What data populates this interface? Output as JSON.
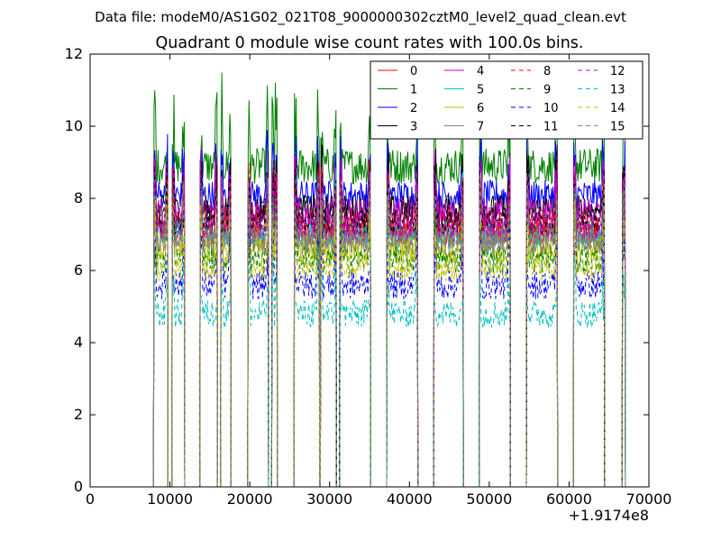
{
  "header": {
    "sup_title": "Data file: modeM0/AS1G02_021T08_9000000302cztM0_level2_quad_clean.evt"
  },
  "chart_data": {
    "type": "line",
    "title": "Quadrant 0 module wise count rates with 100.0s bins.",
    "xlabel": "",
    "ylabel": "",
    "x_offset_label": "+1.9174e8",
    "xlim": [
      0,
      70000
    ],
    "ylim": [
      0,
      12
    ],
    "x_ticks": [
      0,
      10000,
      20000,
      30000,
      40000,
      50000,
      60000,
      70000
    ],
    "y_ticks": [
      0,
      2,
      4,
      6,
      8,
      10,
      12
    ],
    "grid": false,
    "legend_position": "top-right",
    "legend_columns": 4,
    "segments": [
      [
        8000,
        9700
      ],
      [
        10300,
        11800
      ],
      [
        13800,
        15900
      ],
      [
        16400,
        17600
      ],
      [
        19800,
        22300
      ],
      [
        22800,
        23400
      ],
      [
        25600,
        28700
      ],
      [
        28900,
        30800
      ],
      [
        31300,
        35100
      ],
      [
        37200,
        41000
      ],
      [
        43100,
        46700
      ],
      [
        48800,
        52600
      ],
      [
        54700,
        58500
      ],
      [
        60600,
        64400
      ],
      [
        66700,
        67000
      ]
    ],
    "series": [
      {
        "name": "0",
        "color": "#ff0000",
        "style": "solid",
        "level": 7.1
      },
      {
        "name": "1",
        "color": "#008000",
        "style": "solid",
        "level": 8.9
      },
      {
        "name": "2",
        "color": "#0000ff",
        "style": "solid",
        "level": 8.1
      },
      {
        "name": "3",
        "color": "#000000",
        "style": "solid",
        "level": 7.7
      },
      {
        "name": "4",
        "color": "#bf00bf",
        "style": "solid",
        "level": 7.6
      },
      {
        "name": "5",
        "color": "#00bfbf",
        "style": "solid",
        "level": 7.0
      },
      {
        "name": "6",
        "color": "#bfbf00",
        "style": "solid",
        "level": 6.6
      },
      {
        "name": "7",
        "color": "#808080",
        "style": "solid",
        "level": 6.9
      },
      {
        "name": "8",
        "color": "#ff0000",
        "style": "dashed",
        "level": 7.3
      },
      {
        "name": "9",
        "color": "#008000",
        "style": "dashed",
        "level": 6.3
      },
      {
        "name": "10",
        "color": "#0000ff",
        "style": "dashed",
        "level": 5.6
      },
      {
        "name": "11",
        "color": "#000000",
        "style": "dashed",
        "level": 7.4
      },
      {
        "name": "12",
        "color": "#bf00bf",
        "style": "dashed",
        "level": 7.2
      },
      {
        "name": "13",
        "color": "#00bfbf",
        "style": "dashed",
        "level": 4.8
      },
      {
        "name": "14",
        "color": "#bfbf00",
        "style": "dashed",
        "level": 6.1
      },
      {
        "name": "15",
        "color": "#808080",
        "style": "dashed",
        "level": 6.8
      }
    ]
  }
}
